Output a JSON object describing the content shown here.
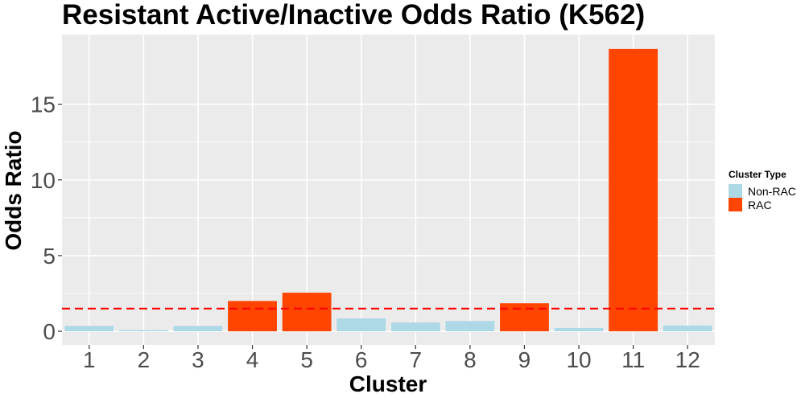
{
  "chart_data": {
    "type": "bar",
    "title": "Resistant Active/Inactive Odds Ratio (K562)",
    "xlabel": "Cluster",
    "ylabel": "Odds Ratio",
    "categories": [
      "1",
      "2",
      "3",
      "4",
      "5",
      "6",
      "7",
      "8",
      "9",
      "10",
      "11",
      "12"
    ],
    "values": [
      0.35,
      0.08,
      0.35,
      2.0,
      2.55,
      0.85,
      0.58,
      0.68,
      1.85,
      0.22,
      18.65,
      0.38
    ],
    "cluster_type": [
      "Non-RAC",
      "Non-RAC",
      "Non-RAC",
      "RAC",
      "RAC",
      "Non-RAC",
      "Non-RAC",
      "Non-RAC",
      "RAC",
      "Non-RAC",
      "RAC",
      "Non-RAC"
    ],
    "ylim": [
      -0.9,
      19.6
    ],
    "yticks": [
      0,
      5,
      10,
      15
    ],
    "reference_line": {
      "value": 1.5,
      "color": "#ff0000",
      "style": "dashed"
    },
    "grid": true,
    "legend": {
      "title": "Cluster Type",
      "position": "right",
      "items": [
        {
          "label": "Non-RAC",
          "color": "#add8e6"
        },
        {
          "label": "RAC",
          "color": "#ff4500"
        }
      ]
    },
    "colors": {
      "Non-RAC": "#add8e6",
      "RAC": "#ff4500",
      "panel": "#ebebeb",
      "grid": "#ffffff"
    }
  }
}
